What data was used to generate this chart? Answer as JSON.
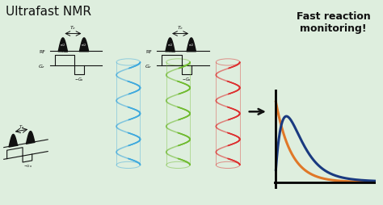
{
  "bg_color": "#deeede",
  "title_text": "Ultrafast NMR",
  "title_fontsize": 11,
  "title_weight": "normal",
  "title_color": "#111111",
  "fast_reaction_text": "Fast reaction\nmonitoring!",
  "fast_reaction_fontsize": 9,
  "fast_reaction_weight": "bold",
  "orange_color": "#e07828",
  "blue_color": "#1a3a80",
  "helix_blue": "#40aadd",
  "helix_green": "#70bb30",
  "helix_red": "#dd3030",
  "pulse_color": "#111111",
  "arrow_color": "#111111"
}
